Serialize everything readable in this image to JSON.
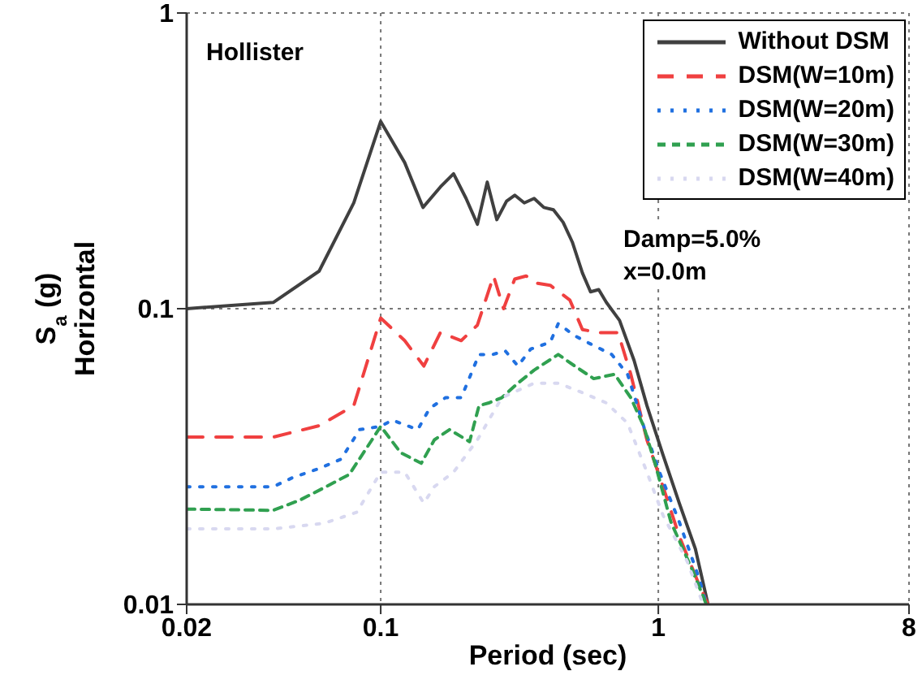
{
  "chart_data": {
    "type": "line",
    "xlabel": "Period (sec)",
    "ylabel": "S$_{a}$(g)\nHorizontal",
    "log": "xy",
    "xlim": [
      0.02,
      8
    ],
    "ylim": [
      0.01,
      1
    ],
    "xticks": [
      0.02,
      0.1,
      1,
      8
    ],
    "yticks": [
      0.01,
      0.1,
      1
    ],
    "grid": true,
    "legend": "top right",
    "annotations": [
      "Hollister",
      "Damp=5.0%",
      "x=0.0m"
    ],
    "series": [
      {
        "name": "Without DSM",
        "color": "#404040",
        "line_style": "solid",
        "x": [
          0.02,
          0.041,
          0.06,
          0.08,
          0.1,
          0.122,
          0.142,
          0.164,
          0.183,
          0.203,
          0.223,
          0.242,
          0.262,
          0.284,
          0.304,
          0.329,
          0.357,
          0.387,
          0.419,
          0.454,
          0.49,
          0.533,
          0.57,
          0.61,
          0.65,
          0.725,
          0.818,
          0.91,
          1.04,
          1.19,
          1.36,
          1.51
        ],
        "values": [
          0.1,
          0.105,
          0.134,
          0.228,
          0.43,
          0.312,
          0.22,
          0.258,
          0.286,
          0.236,
          0.193,
          0.268,
          0.2,
          0.231,
          0.242,
          0.228,
          0.236,
          0.22,
          0.216,
          0.196,
          0.168,
          0.132,
          0.114,
          0.116,
          0.105,
          0.0913,
          0.0668,
          0.047,
          0.032,
          0.022,
          0.0154,
          0.01
        ]
      },
      {
        "name": "DSM(W=10m)",
        "color": "#f04040",
        "line_style": "dashed",
        "x": [
          0.02,
          0.041,
          0.06,
          0.08,
          0.1,
          0.122,
          0.143,
          0.164,
          0.195,
          0.223,
          0.255,
          0.277,
          0.304,
          0.334,
          0.366,
          0.408,
          0.48,
          0.533,
          0.61,
          0.716,
          0.796,
          0.91,
          1.04,
          1.19,
          1.4,
          1.51
        ],
        "values": [
          0.0368,
          0.0368,
          0.0402,
          0.047,
          0.093,
          0.078,
          0.064,
          0.083,
          0.078,
          0.088,
          0.129,
          0.1,
          0.126,
          0.129,
          0.122,
          0.12,
          0.107,
          0.085,
          0.083,
          0.083,
          0.06,
          0.036,
          0.025,
          0.017,
          0.0117,
          0.01
        ]
      },
      {
        "name": "DSM(W=20m)",
        "color": "#2070e0",
        "line_style": "dotted",
        "x": [
          0.02,
          0.041,
          0.048,
          0.06,
          0.072,
          0.084,
          0.1,
          0.11,
          0.136,
          0.15,
          0.171,
          0.195,
          0.226,
          0.253,
          0.281,
          0.312,
          0.347,
          0.408,
          0.436,
          0.5,
          0.57,
          0.68,
          0.775,
          0.886,
          1.01,
          1.19,
          1.4,
          1.49
        ],
        "values": [
          0.025,
          0.025,
          0.0268,
          0.0288,
          0.031,
          0.039,
          0.04,
          0.042,
          0.039,
          0.046,
          0.05,
          0.05,
          0.07,
          0.07,
          0.072,
          0.064,
          0.073,
          0.077,
          0.089,
          0.081,
          0.076,
          0.07,
          0.06,
          0.04,
          0.028,
          0.019,
          0.0123,
          0.01
        ]
      },
      {
        "name": "DSM(W=30m)",
        "color": "#30a050",
        "line_style": "dashed",
        "x": [
          0.02,
          0.041,
          0.051,
          0.0625,
          0.077,
          0.093,
          0.1,
          0.118,
          0.14,
          0.156,
          0.177,
          0.209,
          0.226,
          0.245,
          0.273,
          0.312,
          0.357,
          0.436,
          0.5,
          0.585,
          0.696,
          0.796,
          0.886,
          0.973,
          1.11,
          1.32,
          1.49
        ],
        "values": [
          0.021,
          0.0208,
          0.0225,
          0.0248,
          0.0275,
          0.036,
          0.04,
          0.0326,
          0.03,
          0.036,
          0.039,
          0.0355,
          0.047,
          0.048,
          0.05,
          0.056,
          0.062,
          0.07,
          0.064,
          0.058,
          0.06,
          0.05,
          0.04,
          0.03,
          0.019,
          0.0132,
          0.01
        ]
      },
      {
        "name": "DSM(W=40m)",
        "color": "#d8d8f0",
        "line_style": "dotted",
        "x": [
          0.02,
          0.041,
          0.0625,
          0.082,
          0.1,
          0.122,
          0.143,
          0.156,
          0.183,
          0.223,
          0.273,
          0.357,
          0.436,
          0.533,
          0.65,
          0.775,
          0.91,
          1.04,
          1.27,
          1.45
        ],
        "values": [
          0.018,
          0.018,
          0.0188,
          0.0205,
          0.028,
          0.028,
          0.022,
          0.025,
          0.028,
          0.036,
          0.05,
          0.056,
          0.056,
          0.052,
          0.048,
          0.041,
          0.028,
          0.02,
          0.014,
          0.01
        ]
      }
    ]
  }
}
